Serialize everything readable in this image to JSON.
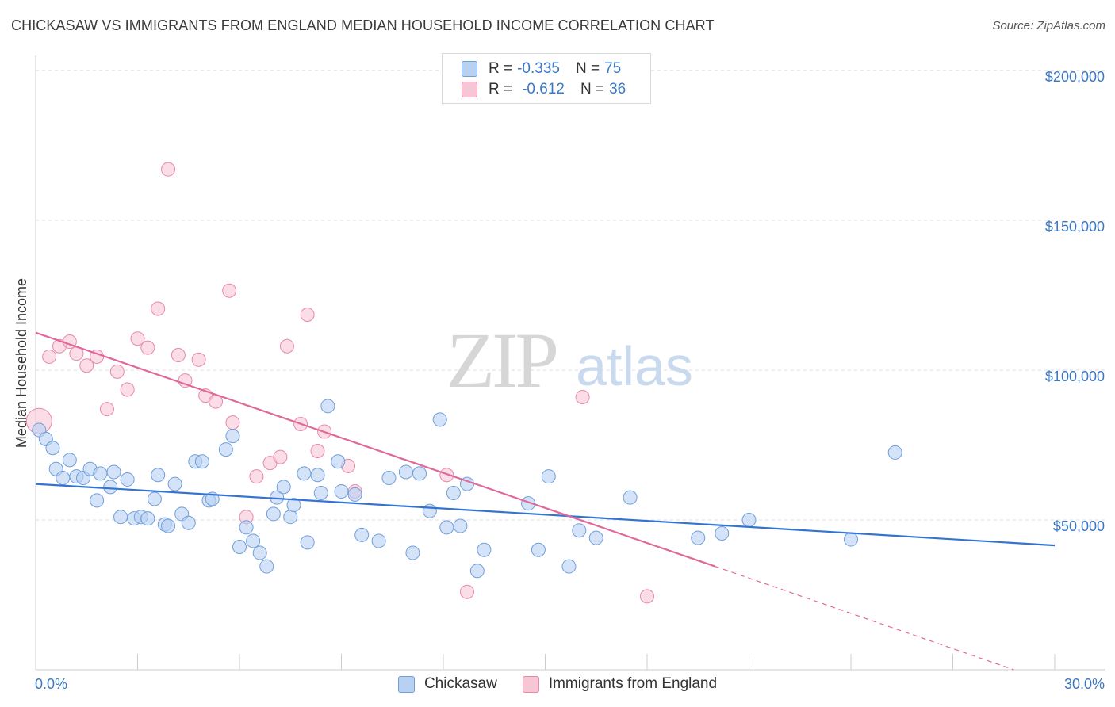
{
  "header": {
    "title": "CHICKASAW VS IMMIGRANTS FROM ENGLAND MEDIAN HOUSEHOLD INCOME CORRELATION CHART",
    "source": "Source: ZipAtlas.com"
  },
  "watermark": {
    "zip": "ZIP",
    "atlas": "atlas"
  },
  "legend_top": [
    {
      "r_label": "R =",
      "r_value": "-0.335",
      "n_label": "N =",
      "n_value": "75"
    },
    {
      "r_label": "R =",
      "r_value": "-0.612",
      "n_label": "N =",
      "n_value": "36"
    }
  ],
  "legend_bottom": [
    {
      "label": "Chickasaw"
    },
    {
      "label": "Immigrants from England"
    }
  ],
  "colors": {
    "blue_fill": "#b8d1f3",
    "blue_stroke": "#6f9fdb",
    "blue_line": "#3374d3",
    "pink_fill": "#f7c6d5",
    "pink_stroke": "#e889a8",
    "pink_line": "#e0699a",
    "axis_text": "#3b78c4",
    "grid": "#dddddd"
  },
  "chart_data": {
    "type": "scatter",
    "title": "CHICKASAW VS IMMIGRANTS FROM ENGLAND MEDIAN HOUSEHOLD INCOME CORRELATION CHART",
    "xlabel": "",
    "ylabel": "Median Household Income",
    "xlim": [
      0,
      30
    ],
    "ylim": [
      0,
      205000
    ],
    "x_tick_labels": [
      "0.0%",
      "30.0%"
    ],
    "y_ticks": [
      50000,
      100000,
      150000,
      200000
    ],
    "y_tick_labels": [
      "$50,000",
      "$100,000",
      "$150,000",
      "$200,000"
    ],
    "grid": "horizontal dashed",
    "legend_position": "top-center",
    "series": [
      {
        "name": "Chickasaw",
        "color": "#6f9fdb",
        "points": [
          [
            0.1,
            80000
          ],
          [
            0.3,
            77000
          ],
          [
            0.5,
            74000
          ],
          [
            0.6,
            67000
          ],
          [
            0.8,
            64000
          ],
          [
            1.0,
            70000
          ],
          [
            1.2,
            64500
          ],
          [
            1.4,
            64000
          ],
          [
            1.6,
            67000
          ],
          [
            1.8,
            56500
          ],
          [
            1.9,
            65500
          ],
          [
            2.2,
            61000
          ],
          [
            2.3,
            66000
          ],
          [
            2.5,
            51000
          ],
          [
            2.7,
            63500
          ],
          [
            2.9,
            50500
          ],
          [
            3.1,
            51000
          ],
          [
            3.3,
            50500
          ],
          [
            3.5,
            57000
          ],
          [
            3.6,
            65000
          ],
          [
            3.8,
            48500
          ],
          [
            3.9,
            48000
          ],
          [
            4.1,
            62000
          ],
          [
            4.3,
            52000
          ],
          [
            4.5,
            49000
          ],
          [
            4.7,
            69500
          ],
          [
            4.9,
            69500
          ],
          [
            5.1,
            56500
          ],
          [
            5.2,
            57000
          ],
          [
            5.6,
            73500
          ],
          [
            5.8,
            78000
          ],
          [
            6.0,
            41000
          ],
          [
            6.2,
            47500
          ],
          [
            6.4,
            43000
          ],
          [
            6.6,
            39000
          ],
          [
            6.8,
            34500
          ],
          [
            7.0,
            52000
          ],
          [
            7.1,
            57500
          ],
          [
            7.3,
            61000
          ],
          [
            7.5,
            51000
          ],
          [
            7.6,
            55000
          ],
          [
            7.9,
            65500
          ],
          [
            8.0,
            42500
          ],
          [
            8.3,
            65000
          ],
          [
            8.4,
            59000
          ],
          [
            8.6,
            88000
          ],
          [
            8.9,
            69500
          ],
          [
            9.0,
            59500
          ],
          [
            9.4,
            58500
          ],
          [
            9.6,
            45000
          ],
          [
            10.1,
            43000
          ],
          [
            10.4,
            64000
          ],
          [
            10.9,
            66000
          ],
          [
            11.1,
            39000
          ],
          [
            11.3,
            65500
          ],
          [
            11.6,
            53000
          ],
          [
            11.9,
            83500
          ],
          [
            12.1,
            47500
          ],
          [
            12.3,
            59000
          ],
          [
            12.7,
            62000
          ],
          [
            13.0,
            33000
          ],
          [
            13.2,
            40000
          ],
          [
            14.5,
            55500
          ],
          [
            14.8,
            40000
          ],
          [
            15.1,
            64500
          ],
          [
            15.7,
            34500
          ],
          [
            16.0,
            46500
          ],
          [
            16.5,
            44000
          ],
          [
            17.5,
            57500
          ],
          [
            19.5,
            44000
          ],
          [
            20.2,
            45500
          ],
          [
            21.0,
            50000
          ],
          [
            24.0,
            43500
          ],
          [
            25.3,
            72500
          ],
          [
            12.5,
            48000
          ]
        ],
        "trend": {
          "x": [
            0,
            30
          ],
          "y": [
            62000,
            41500
          ]
        }
      },
      {
        "name": "Immigrants from England",
        "color": "#e889a8",
        "points": [
          [
            0.1,
            83000
          ],
          [
            0.4,
            104500
          ],
          [
            0.7,
            108000
          ],
          [
            1.0,
            109500
          ],
          [
            1.2,
            105500
          ],
          [
            1.5,
            101500
          ],
          [
            1.8,
            104500
          ],
          [
            2.1,
            87000
          ],
          [
            2.4,
            99500
          ],
          [
            2.7,
            93500
          ],
          [
            3.0,
            110500
          ],
          [
            3.3,
            107500
          ],
          [
            3.6,
            120500
          ],
          [
            3.9,
            167000
          ],
          [
            4.2,
            105000
          ],
          [
            4.4,
            96500
          ],
          [
            4.8,
            103500
          ],
          [
            5.0,
            91500
          ],
          [
            5.3,
            89500
          ],
          [
            5.7,
            126500
          ],
          [
            5.8,
            82500
          ],
          [
            6.2,
            51000
          ],
          [
            6.5,
            64500
          ],
          [
            6.9,
            69000
          ],
          [
            7.2,
            71000
          ],
          [
            7.4,
            108000
          ],
          [
            7.8,
            82000
          ],
          [
            8.0,
            118500
          ],
          [
            8.3,
            73000
          ],
          [
            8.5,
            79500
          ],
          [
            9.2,
            68000
          ],
          [
            9.4,
            59500
          ],
          [
            12.1,
            65000
          ],
          [
            12.7,
            26000
          ],
          [
            16.1,
            91000
          ],
          [
            18.0,
            24500
          ]
        ],
        "trend": {
          "x": [
            0,
            20
          ],
          "y": [
            112500,
            34500
          ]
        },
        "trend_extension": {
          "x": [
            20,
            28.8
          ],
          "y": [
            34500,
            0
          ]
        }
      }
    ]
  }
}
